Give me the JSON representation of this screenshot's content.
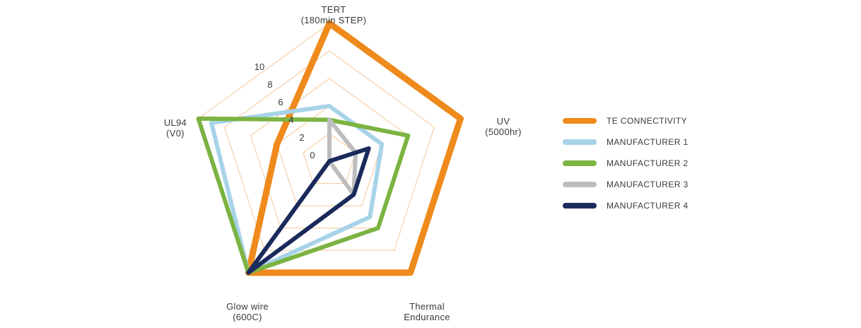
{
  "chart_data": {
    "type": "radar",
    "title": "",
    "axes": [
      {
        "label_line1": "TERT",
        "label_line2": "(180min STEP)"
      },
      {
        "label_line1": "UV",
        "label_line2": "(5000hr)"
      },
      {
        "label_line1": "Thermal",
        "label_line2": "Endurance"
      },
      {
        "label_line1": "Glow wire",
        "label_line2": "(600C)"
      },
      {
        "label_line1": "UL94",
        "label_line2": "(V0)"
      }
    ],
    "ticks": [
      "0",
      "2",
      "4",
      "6",
      "8",
      "10"
    ],
    "range": [
      0,
      10
    ],
    "grid": true,
    "legend_position": "right",
    "series": [
      {
        "name": "TE CONNECTIVITY",
        "color": "#ef8a1c",
        "values": [
          10,
          10,
          10,
          10,
          4
        ]
      },
      {
        "name": "MANUFACTURER 1",
        "color": "#a7d3e8",
        "values": [
          4,
          4,
          5,
          10,
          9
        ]
      },
      {
        "name": "MANUFACTURER 2",
        "color": "#7cb342",
        "values": [
          3,
          6,
          6,
          10,
          10
        ]
      },
      {
        "name": "MANUFACTURER 3",
        "color": "#bdbdbd",
        "values": [
          3,
          2,
          3,
          0,
          0
        ]
      },
      {
        "name": "MANUFACTURER 4",
        "color": "#1b2a5c",
        "values": [
          0,
          3,
          3,
          10,
          0
        ]
      }
    ]
  }
}
